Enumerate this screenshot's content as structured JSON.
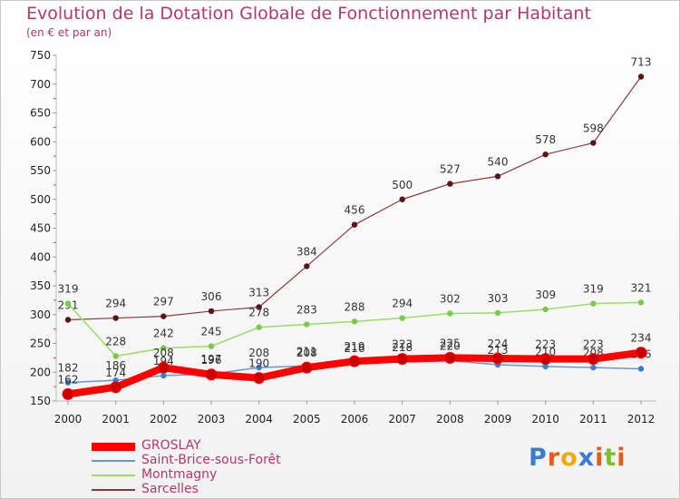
{
  "chart_data": {
    "type": "line",
    "title": "Evolution de la Dotation Globale de Fonctionnement par Habitant",
    "subtitle": "(en € et par an)",
    "xlabel": "",
    "ylabel": "",
    "ylim": [
      150,
      750
    ],
    "yticks": [
      150,
      200,
      250,
      300,
      350,
      400,
      450,
      500,
      550,
      600,
      650,
      700,
      750
    ],
    "x": [
      "2000",
      "2001",
      "2002",
      "2003",
      "2004",
      "2005",
      "2006",
      "2007",
      "2008",
      "2009",
      "2010",
      "2011",
      "2012"
    ],
    "series": [
      {
        "name": "Sarcelles",
        "color": "#8b3a3a",
        "marker": "#5a1414",
        "values": [
          291,
          294,
          297,
          306,
          313,
          384,
          456,
          500,
          527,
          540,
          578,
          598,
          713
        ]
      },
      {
        "name": "Montmagny",
        "color": "#99dd66",
        "marker": "#77cc44",
        "values": [
          319,
          228,
          242,
          245,
          278,
          283,
          288,
          294,
          302,
          303,
          309,
          319,
          321
        ]
      },
      {
        "name": "Saint-Brice-sous-Forêt",
        "color": "#6699cc",
        "marker": "#3a7bd5",
        "values": [
          182,
          186,
          194,
          197,
          208,
          211,
          216,
          218,
          220,
          213,
          210,
          208,
          206
        ]
      },
      {
        "name": "GROSLAY",
        "color": "#ff0000",
        "marker": "#cc0000",
        "values": [
          162,
          174,
          208,
          196,
          190,
          208,
          219,
          223,
          225,
          224,
          223,
          223,
          234
        ]
      }
    ],
    "legend": [
      {
        "name": "GROSLAY",
        "color": "#ff0000"
      },
      {
        "name": "Saint-Brice-sous-Forêt",
        "color": "#6699cc"
      },
      {
        "name": "Montmagny",
        "color": "#99dd66"
      },
      {
        "name": "Sarcelles",
        "color": "#8b3a3a"
      }
    ],
    "legend_position": "bottom-left"
  },
  "branding": {
    "logo_text": "Proxiti",
    "logo_colors": [
      "#3a7bd5",
      "#e85c1a",
      "#f2a900",
      "#3a7bd5",
      "#e85c1a",
      "#7bbf2e",
      "#e85c1a"
    ]
  }
}
